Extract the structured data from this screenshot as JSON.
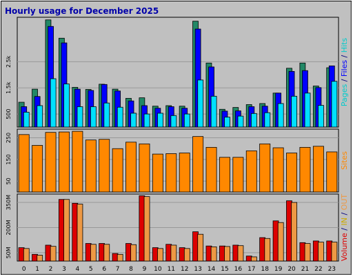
{
  "chart_data": {
    "type": "bar",
    "title": "Hourly usage for December 2025",
    "categories": [
      "0",
      "1",
      "2",
      "3",
      "4",
      "5",
      "6",
      "7",
      "8",
      "9",
      "10",
      "11",
      "12",
      "13",
      "14",
      "15",
      "16",
      "17",
      "18",
      "19",
      "20",
      "21",
      "22",
      "23"
    ],
    "panels": [
      {
        "name": "requests",
        "ylim": [
          0,
          4200
        ],
        "yticks": [
          500,
          1500,
          2500
        ],
        "ytick_labels": [
          "500",
          "1.5k",
          "2.5k"
        ],
        "series": [
          {
            "name": "Hits",
            "color": "#228866",
            "values": [
              950,
              1450,
              4100,
              3400,
              1520,
              1440,
              1640,
              1450,
              1100,
              1120,
              800,
              820,
              800,
              4050,
              2450,
              680,
              750,
              860,
              900,
              1300,
              2250,
              2450,
              1570,
              2270
            ]
          },
          {
            "name": "Files",
            "color": "#0000ff",
            "values": [
              780,
              1170,
              3850,
              3220,
              1450,
              1400,
              1630,
              1380,
              1000,
              820,
              720,
              780,
              720,
              3750,
              2300,
              610,
              620,
              780,
              800,
              1300,
              2130,
              2160,
              1510,
              2340
            ]
          },
          {
            "name": "Pages",
            "color": "#00e0ff",
            "values": [
              570,
              820,
              1850,
              1650,
              780,
              780,
              920,
              760,
              530,
              500,
              530,
              440,
              500,
              1800,
              1180,
              380,
              420,
              520,
              550,
              900,
              1180,
              1300,
              830,
              1750
            ]
          }
        ],
        "axis_label": "Pages / Files / Hits",
        "axis_label_parts": [
          {
            "text": "Pages",
            "color": "#00cccc"
          },
          {
            "text": " / ",
            "color": "#000080"
          },
          {
            "text": "Files",
            "color": "#0000ff"
          },
          {
            "text": " / ",
            "color": "#000080"
          },
          {
            "text": "Hits",
            "color": "#00cccc"
          }
        ]
      },
      {
        "name": "sites",
        "ylim": [
          0,
          290
        ],
        "yticks": [
          50,
          150,
          250
        ],
        "ytick_labels": [
          "50",
          "150",
          "250"
        ],
        "series": [
          {
            "name": "Sites",
            "color": "#ff8800",
            "values": [
              265,
              215,
              275,
              277,
              280,
              240,
              243,
              200,
              230,
              222,
              175,
              177,
              180,
              256,
              206,
              160,
              160,
              190,
              222,
              204,
              180,
              206,
              211,
              185
            ]
          }
        ],
        "axis_label": "Sites",
        "axis_label_parts": [
          {
            "text": "Sites",
            "color": "#ff8800"
          }
        ]
      },
      {
        "name": "volume",
        "ylim": [
          0,
          400
        ],
        "yticks": [
          50,
          200,
          350
        ],
        "ytick_labels": [
          "50M",
          "200M",
          "350M"
        ],
        "series": [
          {
            "name": "Volume",
            "color": "#dd0000",
            "values": [
              80,
              40,
              95,
              368,
              345,
              105,
              105,
              45,
              105,
              390,
              80,
              100,
              80,
              175,
              90,
              90,
              95,
              30,
              140,
              240,
              360,
              110,
              120,
              120
            ]
          },
          {
            "name": "IN",
            "color": "#ff8800",
            "values": [
              0,
              0,
              0,
              0,
              0,
              0,
              0,
              0,
              0,
              0,
              0,
              0,
              0,
              0,
              0,
              0,
              0,
              0,
              0,
              0,
              0,
              0,
              0,
              0
            ]
          },
          {
            "name": "OUT",
            "color": "#ee9944",
            "values": [
              75,
              35,
              88,
              368,
              340,
              100,
              100,
              40,
              98,
              385,
              75,
              95,
              75,
              160,
              85,
              87,
              92,
              25,
              135,
              230,
              350,
              105,
              113,
              113
            ]
          }
        ],
        "axis_label": "Volume / IN / OUT",
        "axis_label_parts": [
          {
            "text": "Volume",
            "color": "#dd0000"
          },
          {
            "text": " / ",
            "color": "#000080"
          },
          {
            "text": "IN",
            "color": "#ccaa00"
          },
          {
            "text": " / ",
            "color": "#000080"
          },
          {
            "text": "OUT",
            "color": "#ee9944"
          }
        ]
      }
    ],
    "grid": true,
    "legend": "right-vertical-text"
  }
}
